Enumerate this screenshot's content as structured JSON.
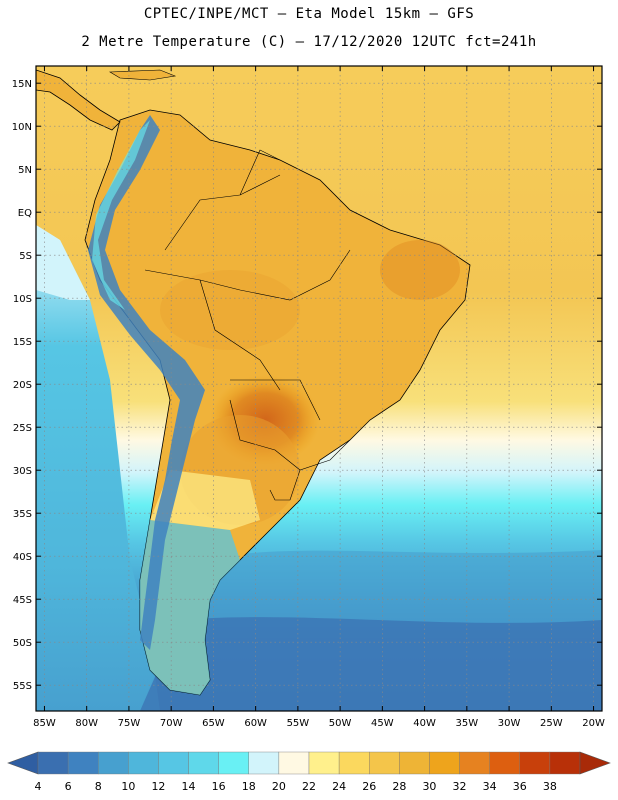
{
  "header": {
    "line1": "CPTEC/INPE/MCT –  Eta Model 15km – GFS",
    "line2": "2 Metre Temperature (C) – 17/12/2020 12UTC fct=241h"
  },
  "axes": {
    "lat_labels": [
      "15N",
      "10N",
      "5N",
      "EQ",
      "5S",
      "10S",
      "15S",
      "20S",
      "25S",
      "30S",
      "35S",
      "40S",
      "45S",
      "50S",
      "55S"
    ],
    "lat_values": [
      15,
      10,
      5,
      0,
      -5,
      -10,
      -15,
      -20,
      -25,
      -30,
      -35,
      -40,
      -45,
      -50,
      -55
    ],
    "lon_labels": [
      "85W",
      "80W",
      "75W",
      "70W",
      "65W",
      "60W",
      "55W",
      "50W",
      "45W",
      "40W",
      "35W",
      "30W",
      "25W",
      "20W"
    ],
    "lon_values": [
      -85,
      -80,
      -75,
      -70,
      -65,
      -60,
      -55,
      -50,
      -45,
      -40,
      -35,
      -30,
      -25,
      -20
    ],
    "lat_range": [
      -58,
      17
    ],
    "lon_range": [
      -86,
      -19
    ]
  },
  "colorbar": {
    "labels": [
      "4",
      "6",
      "8",
      "10",
      "12",
      "14",
      "16",
      "18",
      "20",
      "22",
      "24",
      "26",
      "28",
      "30",
      "32",
      "34",
      "36",
      "38"
    ],
    "colors": [
      "#3a6fb0",
      "#3f82c0",
      "#47a0cf",
      "#4fb6db",
      "#56c6e4",
      "#5fd8ea",
      "#69f0f4",
      "#d2f4fb",
      "#fff9e3",
      "#fff08c",
      "#fbd85e",
      "#f4c54a",
      "#eeb436",
      "#eea41c",
      "#e68220",
      "#dd5f10",
      "#c8400b",
      "#b83008"
    ],
    "left_arrow_color": "#2f5ea2",
    "right_arrow_color": "#a82a08"
  },
  "colors": {
    "ocean_north": "#f3c550",
    "land_warm": "#f0b33a",
    "land_hot": "#e08a22",
    "andes_cold": "#3f82c0",
    "ocean_south": "#3a6fb0"
  }
}
